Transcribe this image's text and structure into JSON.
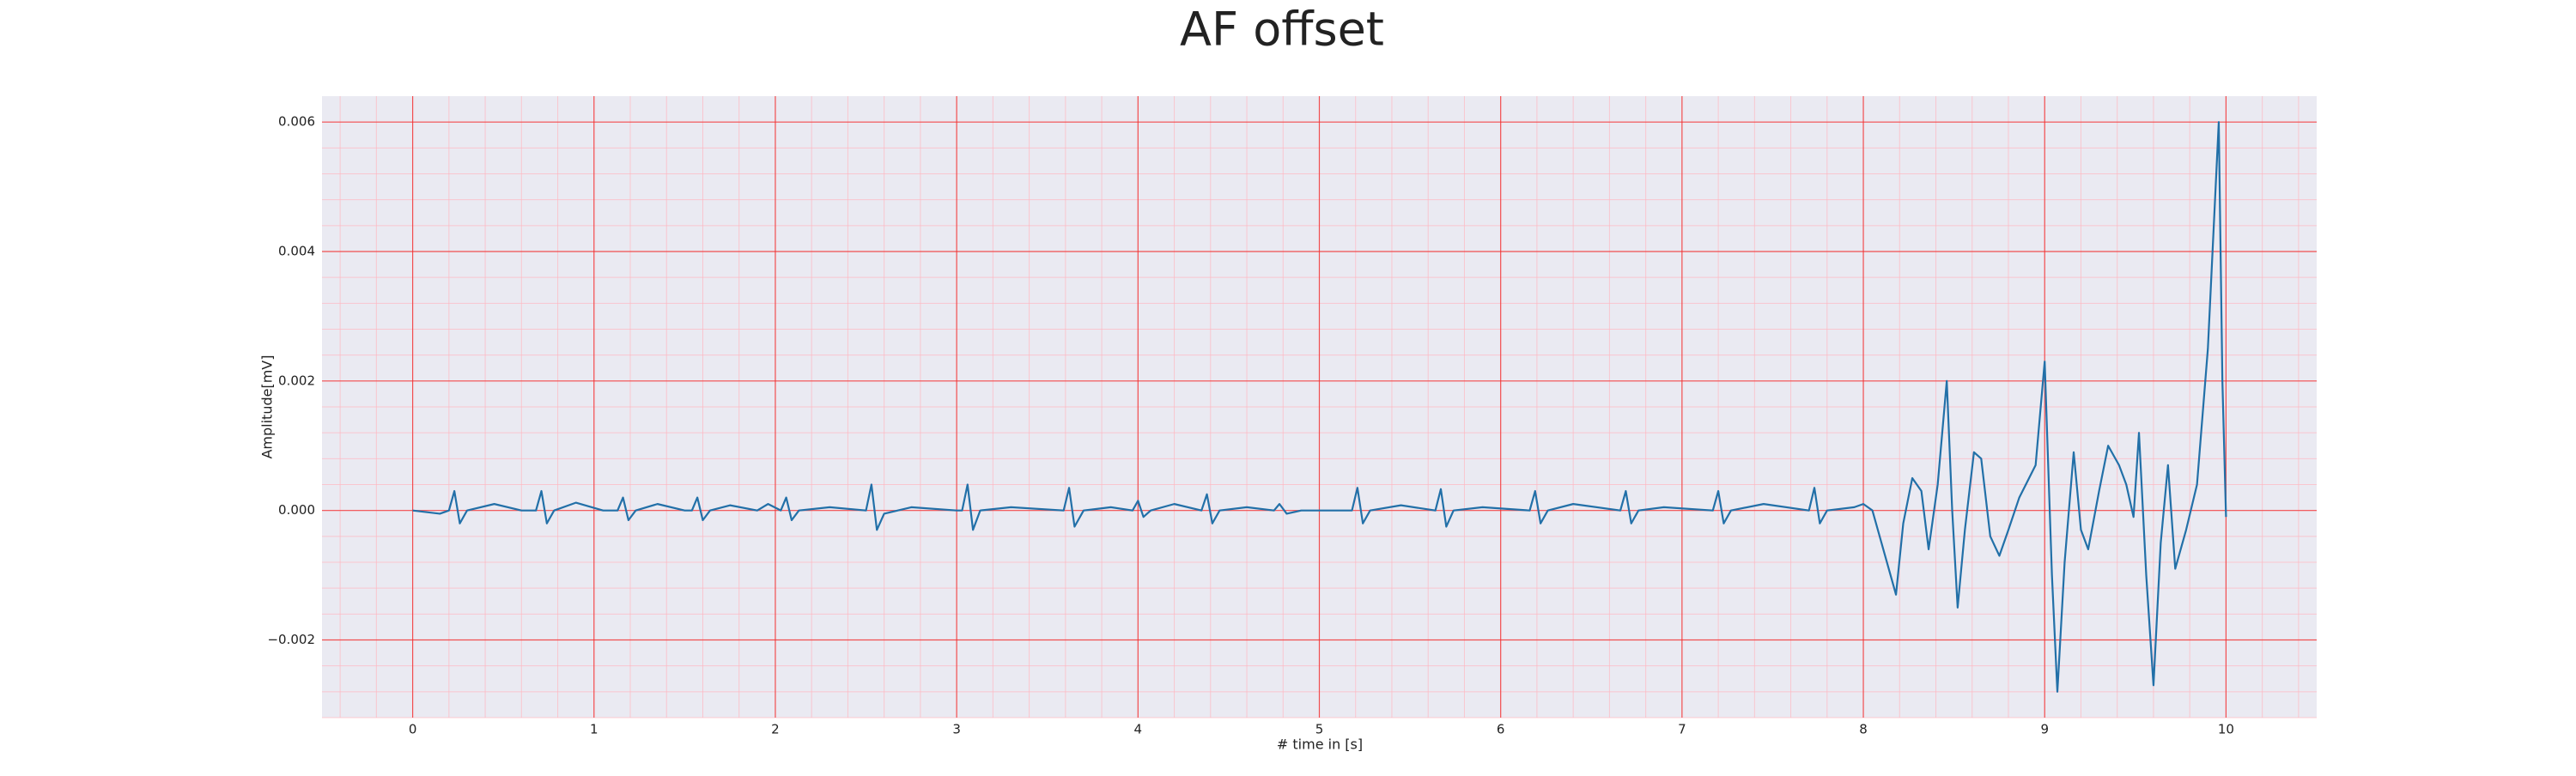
{
  "chart_data": {
    "type": "line",
    "title": "AF offset",
    "xlabel": "# time in [s]",
    "ylabel": "Amplitude[mV]",
    "x": [
      0,
      0.15,
      0.2,
      0.23,
      0.26,
      0.3,
      0.45,
      0.6,
      0.68,
      0.71,
      0.74,
      0.78,
      0.9,
      1.05,
      1.13,
      1.16,
      1.19,
      1.23,
      1.35,
      1.5,
      1.54,
      1.57,
      1.6,
      1.64,
      1.75,
      1.9,
      1.96,
      2.03,
      2.06,
      2.09,
      2.13,
      2.3,
      2.5,
      2.53,
      2.56,
      2.6,
      2.75,
      3.0,
      3.03,
      3.06,
      3.09,
      3.13,
      3.3,
      3.59,
      3.62,
      3.65,
      3.7,
      3.85,
      3.97,
      4.0,
      4.03,
      4.07,
      4.2,
      4.35,
      4.38,
      4.41,
      4.45,
      4.6,
      4.75,
      4.78,
      4.82,
      4.9,
      5.18,
      5.21,
      5.24,
      5.28,
      5.45,
      5.64,
      5.67,
      5.7,
      5.74,
      5.9,
      6.16,
      6.19,
      6.22,
      6.26,
      6.4,
      6.66,
      6.69,
      6.72,
      6.76,
      6.9,
      7.17,
      7.2,
      7.23,
      7.27,
      7.45,
      7.7,
      7.73,
      7.76,
      7.8,
      7.95,
      8.0,
      8.05,
      8.1,
      8.18,
      8.22,
      8.27,
      8.32,
      8.36,
      8.41,
      8.46,
      8.49,
      8.52,
      8.56,
      8.61,
      8.65,
      8.7,
      8.75,
      8.8,
      8.86,
      8.95,
      9.0,
      9.04,
      9.07,
      9.11,
      9.16,
      9.2,
      9.24,
      9.3,
      9.35,
      9.41,
      9.45,
      9.49,
      9.52,
      9.56,
      9.6,
      9.64,
      9.68,
      9.72,
      9.78,
      9.84,
      9.9,
      9.96,
      9.98,
      10.0
    ],
    "series": [
      {
        "name": "AF",
        "color": "#2270a8",
        "values": [
          0,
          -5e-05,
          0,
          0.0003,
          -0.0002,
          0,
          0.0001,
          0,
          0,
          0.0003,
          -0.0002,
          0,
          0.00012,
          0,
          0,
          0.0002,
          -0.00015,
          0,
          0.0001,
          0,
          0,
          0.0002,
          -0.00015,
          0,
          8e-05,
          0,
          0.0001,
          0,
          0.0002,
          -0.00015,
          0,
          5e-05,
          0,
          0.0004,
          -0.0003,
          -5e-05,
          5e-05,
          0,
          0,
          0.0004,
          -0.0003,
          0,
          5e-05,
          0,
          0.00035,
          -0.00025,
          0,
          5e-05,
          0,
          0.00015,
          -0.0001,
          0,
          0.0001,
          0,
          0.00025,
          -0.0002,
          0,
          5e-05,
          0,
          0.0001,
          -5e-05,
          0,
          0,
          0.00035,
          -0.0002,
          0,
          8e-05,
          0,
          0.00033,
          -0.00025,
          0,
          5e-05,
          0,
          0.0003,
          -0.0002,
          0,
          0.0001,
          0,
          0.0003,
          -0.0002,
          0,
          5e-05,
          0,
          0.0003,
          -0.0002,
          0,
          0.0001,
          0,
          0.00035,
          -0.0002,
          0,
          5e-05,
          0.0001,
          0,
          -0.0005,
          -0.0013,
          -0.0002,
          0.0005,
          0.0003,
          -0.0006,
          0.0004,
          0.002,
          0,
          -0.0015,
          -0.0003,
          0.0009,
          0.0008,
          -0.0004,
          -0.0007,
          -0.0003,
          0.0002,
          0.0007,
          0.0023,
          -0.001,
          -0.0028,
          -0.0008,
          0.0009,
          -0.0003,
          -0.0006,
          0.0003,
          0.001,
          0.0007,
          0.0004,
          -0.0001,
          0.0012,
          -0.001,
          -0.0027,
          -0.0005,
          0.0007,
          -0.0009,
          -0.0003,
          0.0004,
          0.0025,
          0.006,
          0.002,
          -0.0001
        ]
      }
    ],
    "xlim": [
      -0.5,
      10.5
    ],
    "xticks": [
      0,
      1,
      2,
      3,
      4,
      5,
      6,
      7,
      8,
      9,
      10
    ],
    "ylim": [
      -0.0032,
      0.0064
    ],
    "yticks": [
      {
        "value": -0.002,
        "label": "−0.002"
      },
      {
        "value": 0,
        "label": "0.000"
      },
      {
        "value": 0.002,
        "label": "0.002"
      },
      {
        "value": 0.004,
        "label": "0.004"
      },
      {
        "value": 0.006,
        "label": "0.006"
      }
    ],
    "grid": true,
    "minor_grid": true
  }
}
